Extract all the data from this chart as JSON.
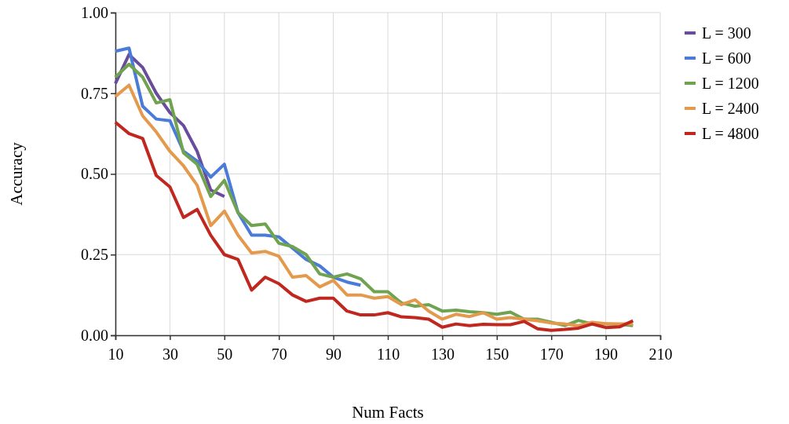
{
  "chart_data": {
    "type": "line",
    "xlabel": "Num Facts",
    "ylabel": "Accuracy",
    "xlim": [
      10,
      210
    ],
    "xticks": [
      10,
      30,
      50,
      70,
      90,
      110,
      130,
      150,
      170,
      190,
      210
    ],
    "ylim": [
      0,
      1
    ],
    "yticks": [
      {
        "value": 0,
        "label": "0.00"
      },
      {
        "value": 0.25,
        "label": "0.25"
      },
      {
        "value": 0.5,
        "label": "0.50"
      },
      {
        "value": 0.75,
        "label": "0.75"
      },
      {
        "value": 1,
        "label": "1.00"
      }
    ],
    "grid": true,
    "legend": "right",
    "line_style": "solid",
    "marker": "none",
    "series": [
      {
        "name": "L = 300",
        "color": "#6a4c9c",
        "x": [
          10,
          15,
          20,
          25,
          30,
          35,
          40,
          45,
          50
        ],
        "values": [
          0.78,
          0.87,
          0.83,
          0.75,
          0.69,
          0.65,
          0.57,
          0.45,
          0.43
        ]
      },
      {
        "name": "L = 600",
        "color": "#4a7bd6",
        "x": [
          10,
          15,
          20,
          25,
          30,
          35,
          40,
          45,
          50,
          55,
          60,
          65,
          70,
          75,
          80,
          85,
          90,
          95,
          100
        ],
        "values": [
          0.88,
          0.89,
          0.71,
          0.67,
          0.665,
          0.57,
          0.54,
          0.49,
          0.53,
          0.38,
          0.31,
          0.31,
          0.305,
          0.27,
          0.235,
          0.215,
          0.18,
          0.165,
          0.155
        ]
      },
      {
        "name": "L = 1200",
        "color": "#70a350",
        "x": [
          10,
          15,
          20,
          25,
          30,
          35,
          40,
          45,
          50,
          55,
          60,
          65,
          70,
          75,
          80,
          85,
          90,
          95,
          100,
          105,
          110,
          115,
          120,
          125,
          130,
          135,
          140,
          145,
          150,
          155,
          160,
          165,
          170,
          175,
          180,
          185,
          190,
          195,
          200
        ],
        "values": [
          0.8,
          0.84,
          0.8,
          0.72,
          0.73,
          0.565,
          0.53,
          0.43,
          0.48,
          0.38,
          0.34,
          0.345,
          0.285,
          0.275,
          0.25,
          0.19,
          0.18,
          0.19,
          0.175,
          0.135,
          0.135,
          0.1,
          0.09,
          0.095,
          0.075,
          0.078,
          0.073,
          0.07,
          0.065,
          0.072,
          0.05,
          0.05,
          0.04,
          0.03,
          0.046,
          0.035,
          0.035,
          0.034,
          0.03
        ]
      },
      {
        "name": "L = 2400",
        "color": "#e39a4c",
        "x": [
          10,
          15,
          20,
          25,
          30,
          35,
          40,
          45,
          50,
          55,
          60,
          65,
          70,
          75,
          80,
          85,
          90,
          95,
          100,
          105,
          110,
          115,
          120,
          125,
          130,
          135,
          140,
          145,
          150,
          155,
          160,
          165,
          170,
          175,
          180,
          185,
          190,
          195,
          200
        ],
        "values": [
          0.74,
          0.775,
          0.68,
          0.63,
          0.57,
          0.525,
          0.465,
          0.34,
          0.385,
          0.31,
          0.255,
          0.26,
          0.245,
          0.18,
          0.185,
          0.15,
          0.17,
          0.125,
          0.125,
          0.115,
          0.12,
          0.095,
          0.11,
          0.075,
          0.05,
          0.065,
          0.058,
          0.07,
          0.05,
          0.055,
          0.05,
          0.045,
          0.038,
          0.035,
          0.03,
          0.04,
          0.036,
          0.035,
          0.035
        ]
      },
      {
        "name": "L = 4800",
        "color": "#c0281f",
        "x": [
          10,
          15,
          20,
          25,
          30,
          35,
          40,
          45,
          50,
          55,
          60,
          65,
          70,
          75,
          80,
          85,
          90,
          95,
          100,
          105,
          110,
          115,
          120,
          125,
          130,
          135,
          140,
          145,
          150,
          155,
          160,
          165,
          170,
          175,
          180,
          185,
          190,
          195,
          200
        ],
        "values": [
          0.66,
          0.625,
          0.61,
          0.495,
          0.46,
          0.365,
          0.39,
          0.31,
          0.25,
          0.235,
          0.14,
          0.18,
          0.16,
          0.125,
          0.105,
          0.115,
          0.115,
          0.075,
          0.063,
          0.063,
          0.07,
          0.057,
          0.055,
          0.05,
          0.025,
          0.035,
          0.03,
          0.034,
          0.033,
          0.033,
          0.043,
          0.02,
          0.015,
          0.018,
          0.022,
          0.035,
          0.024,
          0.026,
          0.045
        ]
      }
    ]
  }
}
